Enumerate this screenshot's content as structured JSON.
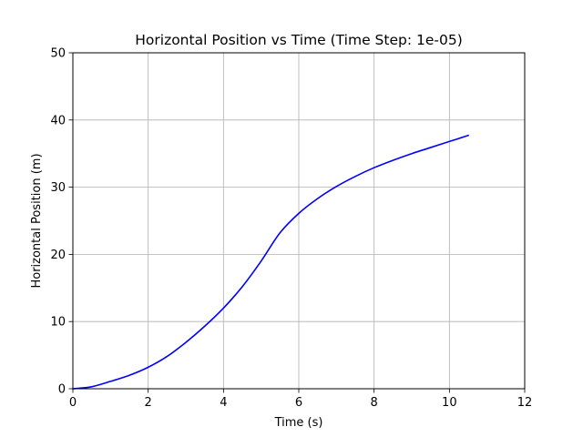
{
  "chart_data": {
    "type": "line",
    "title": "Horizontal Position vs Time (Time Step: 1e-05)",
    "xlabel": "Time (s)",
    "ylabel": "Horizontal Position (m)",
    "xlim": [
      0,
      12
    ],
    "ylim": [
      0,
      50
    ],
    "xticks": [
      0,
      2,
      4,
      6,
      8,
      10,
      12
    ],
    "yticks": [
      0,
      10,
      20,
      30,
      40,
      50
    ],
    "xtick_labels": [
      "0",
      "2",
      "4",
      "6",
      "8",
      "10",
      "12"
    ],
    "ytick_labels": [
      "0",
      "10",
      "20",
      "30",
      "40",
      "50"
    ],
    "grid": true,
    "legend": null,
    "series": [
      {
        "color": "#0000ff",
        "x": [
          0,
          0.5,
          1.0,
          1.5,
          2.0,
          2.5,
          3.0,
          3.5,
          4.0,
          4.5,
          5.0,
          5.5,
          6.0,
          6.5,
          7.0,
          7.5,
          8.0,
          8.5,
          9.0,
          9.5,
          10.0,
          10.5
        ],
        "y": [
          0,
          0.3,
          1.1,
          2.0,
          3.2,
          4.8,
          6.9,
          9.3,
          12.0,
          15.2,
          19.0,
          23.2,
          26.1,
          28.3,
          30.1,
          31.6,
          32.9,
          34.0,
          35.0,
          35.9,
          36.8,
          37.7
        ]
      }
    ]
  }
}
